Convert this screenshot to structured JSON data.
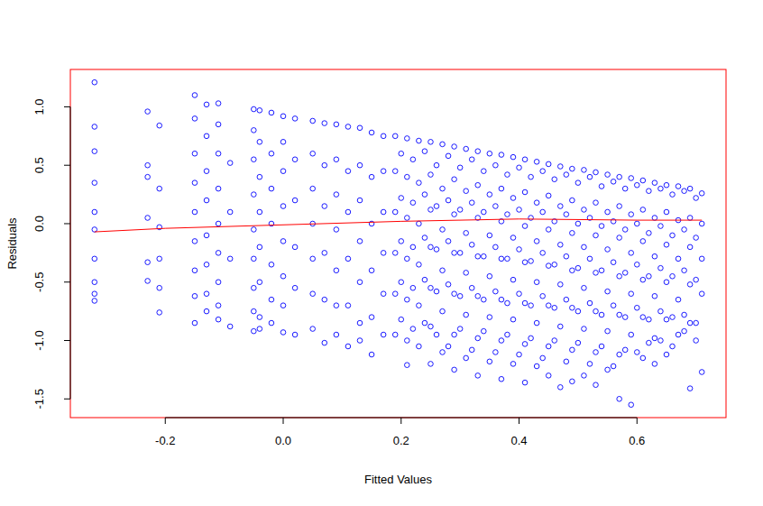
{
  "chart_data": {
    "type": "scatter",
    "x_label": "Fitted Values",
    "y_label": "Residuals",
    "xlim": [
      -0.361,
      0.751
    ],
    "ylim": [
      -1.66,
      1.32
    ],
    "xticks": [
      -0.2,
      {
        "value": 0,
        "label": "0.0"
      },
      0.2,
      0.4,
      0.6
    ],
    "yticks": [
      {
        "value": 1,
        "label": "1.0"
      },
      0.5,
      {
        "value": 0,
        "label": "0.0"
      },
      -0.5,
      {
        "value": -1,
        "label": "-1.0"
      },
      -1.5
    ],
    "grid": false,
    "series": [
      {
        "type": "scatter",
        "color": "#0000ff",
        "marker": "circle-open",
        "x": [
          -0.32,
          -0.32,
          -0.32,
          -0.32,
          -0.32,
          -0.32,
          -0.32,
          -0.32,
          -0.32,
          -0.32,
          -0.23,
          -0.23,
          -0.23,
          -0.23,
          -0.23,
          -0.23,
          -0.21,
          -0.21,
          -0.21,
          -0.21,
          -0.21,
          -0.21,
          -0.15,
          -0.15,
          -0.15,
          -0.15,
          -0.15,
          -0.15,
          -0.15,
          -0.15,
          -0.15,
          -0.13,
          -0.13,
          -0.13,
          -0.13,
          -0.13,
          -0.13,
          -0.13,
          -0.13,
          -0.11,
          -0.11,
          -0.11,
          -0.11,
          -0.11,
          -0.11,
          -0.11,
          -0.11,
          -0.11,
          -0.09,
          -0.09,
          -0.09,
          -0.09,
          -0.05,
          -0.05,
          -0.05,
          -0.05,
          -0.05,
          -0.05,
          -0.05,
          -0.05,
          -0.05,
          -0.04,
          -0.04,
          -0.04,
          -0.04,
          -0.04,
          -0.04,
          -0.04,
          -0.04,
          -0.02,
          -0.02,
          -0.02,
          -0.02,
          -0.02,
          -0.02,
          -0.02,
          0,
          0,
          0,
          0,
          0,
          0,
          0,
          0,
          0.02,
          0.02,
          0.02,
          0.02,
          0.02,
          0.02,
          0.05,
          0.05,
          0.05,
          0.05,
          0.05,
          0.05,
          0.05,
          0.07,
          0.07,
          0.07,
          0.07,
          0.07,
          0.07,
          0.09,
          0.09,
          0.09,
          0.09,
          0.09,
          0.09,
          0.09,
          0.11,
          0.11,
          0.11,
          0.11,
          0.11,
          0.11,
          0.13,
          0.13,
          0.13,
          0.13,
          0.13,
          0.13,
          0.13,
          0.15,
          0.15,
          0.15,
          0.15,
          0.15,
          0.15,
          0.17,
          0.17,
          0.17,
          0.17,
          0.17,
          0.17,
          0.19,
          0.19,
          0.19,
          0.19,
          0.19,
          0.19,
          0.21,
          0.21,
          0.21,
          0.21,
          0.21,
          0.21,
          0.21,
          0.23,
          0.23,
          0.23,
          0.23,
          0.23,
          0.23,
          0.25,
          0.25,
          0.25,
          0.25,
          0.25,
          0.25,
          0.25,
          0.27,
          0.27,
          0.27,
          0.27,
          0.27,
          0.27,
          0.29,
          0.29,
          0.29,
          0.29,
          0.29,
          0.29,
          0.29,
          0.31,
          0.31,
          0.31,
          0.31,
          0.31,
          0.31,
          0.33,
          0.33,
          0.33,
          0.33,
          0.33,
          0.33,
          0.33,
          0.35,
          0.35,
          0.35,
          0.35,
          0.35,
          0.35,
          0.37,
          0.37,
          0.37,
          0.37,
          0.37,
          0.37,
          0.37,
          0.39,
          0.39,
          0.39,
          0.39,
          0.39,
          0.39,
          0.41,
          0.41,
          0.41,
          0.41,
          0.41,
          0.41,
          0.41,
          0.43,
          0.43,
          0.43,
          0.43,
          0.43,
          0.43,
          0.45,
          0.45,
          0.45,
          0.45,
          0.45,
          0.45,
          0.45,
          0.47,
          0.47,
          0.47,
          0.47,
          0.47,
          0.47,
          0.49,
          0.49,
          0.49,
          0.49,
          0.49,
          0.49,
          0.49,
          0.51,
          0.51,
          0.51,
          0.51,
          0.51,
          0.51,
          0.53,
          0.53,
          0.53,
          0.53,
          0.53,
          0.53,
          0.53,
          0.55,
          0.55,
          0.55,
          0.55,
          0.55,
          0.55,
          0.57,
          0.57,
          0.57,
          0.57,
          0.57,
          0.57,
          0.57,
          0.59,
          0.59,
          0.59,
          0.59,
          0.59,
          0.59,
          0.61,
          0.61,
          0.61,
          0.61,
          0.61,
          0.61,
          0.63,
          0.63,
          0.63,
          0.63,
          0.63,
          0.63,
          0.65,
          0.65,
          0.65,
          0.65,
          0.65,
          0.65,
          0.67,
          0.67,
          0.67,
          0.67,
          0.67,
          0.69,
          0.69,
          0.69,
          0.69,
          0.69,
          0.69,
          0.71,
          0.71,
          0.71,
          0.71,
          0.71,
          0.2,
          0.2,
          0.2,
          0.2,
          0.2,
          0.22,
          0.22,
          0.22,
          0.22,
          0.22,
          0.24,
          0.24,
          0.24,
          0.24,
          0.24,
          0.26,
          0.26,
          0.26,
          0.26,
          0.26,
          0.28,
          0.28,
          0.28,
          0.28,
          0.28,
          0.3,
          0.3,
          0.3,
          0.3,
          0.3,
          0.32,
          0.32,
          0.32,
          0.32,
          0.32,
          0.34,
          0.34,
          0.34,
          0.34,
          0.34,
          0.36,
          0.36,
          0.36,
          0.36,
          0.36,
          0.38,
          0.38,
          0.38,
          0.38,
          0.38,
          0.4,
          0.4,
          0.4,
          0.4,
          0.4,
          0.42,
          0.42,
          0.42,
          0.42,
          0.42,
          0.44,
          0.44,
          0.44,
          0.44,
          0.44,
          0.46,
          0.46,
          0.46,
          0.46,
          0.46,
          0.48,
          0.48,
          0.48,
          0.48,
          0.48,
          0.5,
          0.5,
          0.5,
          0.5,
          0.5,
          0.52,
          0.52,
          0.52,
          0.52,
          0.52,
          0.54,
          0.54,
          0.54,
          0.54,
          0.54,
          0.56,
          0.56,
          0.56,
          0.56,
          0.56,
          0.58,
          0.58,
          0.58,
          0.58,
          0.58,
          0.6,
          0.6,
          0.6,
          0.6,
          0.6,
          0.62,
          0.62,
          0.62,
          0.62,
          0.62,
          0.64,
          0.64,
          0.64,
          0.64,
          0.64,
          0.66,
          0.66,
          0.66,
          0.66,
          0.66,
          0.68,
          0.68,
          0.68,
          0.68,
          0.68,
          0.7,
          0.7,
          0.7,
          0.7,
          0.7
        ],
        "values": [
          1.21,
          0.83,
          0.62,
          0.35,
          0.1,
          -0.05,
          -0.3,
          -0.5,
          -0.6,
          -0.66,
          0.96,
          0.5,
          0.4,
          0.05,
          -0.33,
          -0.49,
          0.84,
          0.3,
          -0.03,
          -0.3,
          -0.55,
          -0.76,
          1.1,
          0.9,
          0.6,
          0.35,
          0.1,
          -0.15,
          -0.4,
          -0.62,
          -0.85,
          1.02,
          0.75,
          0.45,
          0.2,
          -0.1,
          -0.35,
          -0.6,
          -0.75,
          1.03,
          0.85,
          0.6,
          0.3,
          0.0,
          -0.25,
          -0.5,
          -0.7,
          -0.82,
          0.52,
          0.1,
          -0.3,
          -0.88,
          0.98,
          0.8,
          0.55,
          0.25,
          -0.05,
          -0.3,
          -0.55,
          -0.75,
          -0.92,
          0.97,
          0.7,
          0.4,
          0.1,
          -0.2,
          -0.5,
          -0.8,
          -0.9,
          0.95,
          0.6,
          0.3,
          0.0,
          -0.35,
          -0.65,
          -0.85,
          0.92,
          0.7,
          0.45,
          0.15,
          -0.15,
          -0.45,
          -0.7,
          -0.93,
          0.9,
          0.55,
          0.2,
          -0.2,
          -0.55,
          -0.95,
          0.88,
          0.6,
          0.3,
          0.0,
          -0.3,
          -0.6,
          -0.9,
          0.86,
          0.5,
          0.15,
          -0.25,
          -0.65,
          -1.02,
          0.85,
          0.55,
          0.25,
          -0.05,
          -0.4,
          -0.7,
          -0.95,
          0.83,
          0.45,
          0.1,
          -0.3,
          -0.7,
          -1.05,
          0.82,
          0.5,
          0.2,
          -0.15,
          -0.5,
          -0.85,
          -1.0,
          0.78,
          0.4,
          0.0,
          -0.4,
          -0.8,
          -1.12,
          0.75,
          0.45,
          0.1,
          -0.25,
          -0.6,
          -0.95,
          0.75,
          0.45,
          0.1,
          -0.25,
          -0.6,
          -0.95,
          0.73,
          0.4,
          0.05,
          -0.3,
          -0.65,
          -1.0,
          -1.21,
          0.71,
          0.35,
          0.0,
          -0.35,
          -0.7,
          -1.05,
          0.7,
          0.42,
          0.12,
          -0.2,
          -0.55,
          -0.88,
          -1.2,
          0.68,
          0.3,
          -0.05,
          -0.4,
          -0.75,
          -1.1,
          0.66,
          0.38,
          0.08,
          -0.25,
          -0.6,
          -0.95,
          -1.25,
          0.64,
          0.28,
          -0.08,
          -0.42,
          -0.78,
          -1.15,
          0.62,
          0.33,
          0.05,
          -0.28,
          -0.62,
          -0.98,
          -1.3,
          0.6,
          0.25,
          -0.1,
          -0.45,
          -0.8,
          -1.18,
          0.59,
          0.3,
          0.02,
          -0.3,
          -0.65,
          -1.0,
          -1.33,
          0.57,
          0.22,
          -0.12,
          -0.48,
          -0.82,
          -1.2,
          0.55,
          0.27,
          -0.02,
          -0.33,
          -0.68,
          -1.03,
          -1.36,
          0.53,
          0.18,
          -0.15,
          -0.5,
          -0.85,
          -1.22,
          0.51,
          0.24,
          -0.05,
          -0.36,
          -0.7,
          -1.05,
          -1.3,
          0.49,
          0.15,
          -0.18,
          -0.52,
          -0.88,
          -1.4,
          0.47,
          0.2,
          -0.08,
          -0.4,
          -0.72,
          -1.08,
          -1.35,
          0.46,
          0.12,
          -0.2,
          -0.55,
          -0.9,
          -1.3,
          0.44,
          0.18,
          -0.1,
          -0.42,
          -0.75,
          -1.1,
          -1.38,
          0.42,
          0.1,
          -0.22,
          -0.58,
          -0.92,
          -1.25,
          0.4,
          0.15,
          -0.12,
          -0.45,
          -0.78,
          -1.12,
          -1.5,
          0.39,
          0.08,
          -0.25,
          -0.6,
          -0.95,
          -1.55,
          0.37,
          0.12,
          -0.15,
          -0.48,
          -0.8,
          -1.15,
          0.35,
          0.05,
          -0.28,
          -0.62,
          -0.98,
          -1.2,
          0.33,
          0.1,
          -0.18,
          -0.5,
          -0.82,
          -1.12,
          0.32,
          0.03,
          -0.3,
          -0.65,
          -0.95,
          0.3,
          0.05,
          -0.2,
          -0.52,
          -0.85,
          -1.41,
          0.26,
          0.0,
          -0.3,
          -0.6,
          -1.27,
          0.6,
          0.22,
          -0.15,
          -0.5,
          -0.82,
          0.55,
          0.18,
          -0.2,
          -0.55,
          -0.9,
          0.62,
          0.25,
          -0.12,
          -0.48,
          -0.85,
          0.5,
          0.15,
          -0.22,
          -0.58,
          -0.95,
          0.58,
          0.2,
          -0.15,
          -0.52,
          -1.05,
          0.48,
          0.12,
          -0.25,
          -0.62,
          -0.9,
          0.55,
          0.18,
          -0.18,
          -0.55,
          -1.08,
          0.45,
          0.1,
          -0.28,
          -0.65,
          -0.92,
          0.5,
          0.15,
          -0.2,
          -0.58,
          -1.1,
          0.42,
          0.08,
          -0.3,
          -0.68,
          -0.95,
          0.48,
          0.12,
          -0.22,
          -0.6,
          -1.12,
          0.4,
          0.05,
          -0.32,
          -0.7,
          -0.98,
          0.45,
          0.1,
          -0.25,
          -0.62,
          -1.15,
          0.38,
          0.02,
          -0.35,
          -0.72,
          -1.0,
          0.42,
          0.08,
          -0.28,
          -0.65,
          -1.18,
          0.35,
          0.0,
          -0.38,
          -0.75,
          -1.02,
          0.4,
          0.05,
          -0.3,
          -0.68,
          -1.2,
          0.32,
          -0.02,
          -0.4,
          -0.78,
          -1.05,
          0.36,
          0.02,
          -0.33,
          -0.7,
          -1.22,
          0.3,
          -0.05,
          -0.42,
          -0.8,
          -1.08,
          0.33,
          0.0,
          -0.35,
          -0.72,
          -1.1,
          0.28,
          -0.08,
          -0.45,
          -0.82,
          -1.02,
          0.3,
          -0.02,
          -0.38,
          -0.75,
          -1.0,
          0.25,
          -0.1,
          -0.45,
          -0.8,
          -1.05,
          0.28,
          -0.05,
          -0.4,
          -0.78,
          -0.92,
          0.22,
          -0.12,
          -0.48,
          -0.85,
          -1.0
        ]
      },
      {
        "type": "line",
        "color": "#ff0000",
        "line_style": "solid",
        "x": [
          -0.32,
          -0.2,
          0,
          0.2,
          0.4,
          0.6,
          0.71
        ],
        "values": [
          -0.07,
          -0.04,
          -0.01,
          0.02,
          0.04,
          0.03,
          0.03
        ]
      }
    ]
  }
}
